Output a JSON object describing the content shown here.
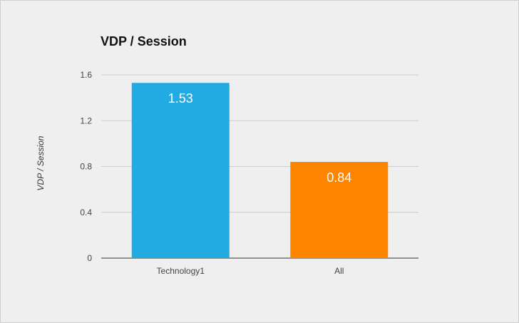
{
  "chart_data": {
    "type": "bar",
    "title": "VDP / Session",
    "xlabel": "",
    "ylabel": "VDP / Session",
    "categories": [
      "Technology1",
      "All"
    ],
    "values": [
      1.53,
      0.84
    ],
    "data_labels": [
      "1.53",
      "0.84"
    ],
    "colors": [
      "#22aae2",
      "#fd8500"
    ],
    "ylim": [
      0,
      1.6
    ],
    "yticks": [
      0,
      0.4,
      0.8,
      1.2,
      1.6
    ],
    "ytick_labels": [
      "0",
      "0.4",
      "0.8",
      "1.2",
      "1.6"
    ],
    "grid": true,
    "legend": "none"
  }
}
